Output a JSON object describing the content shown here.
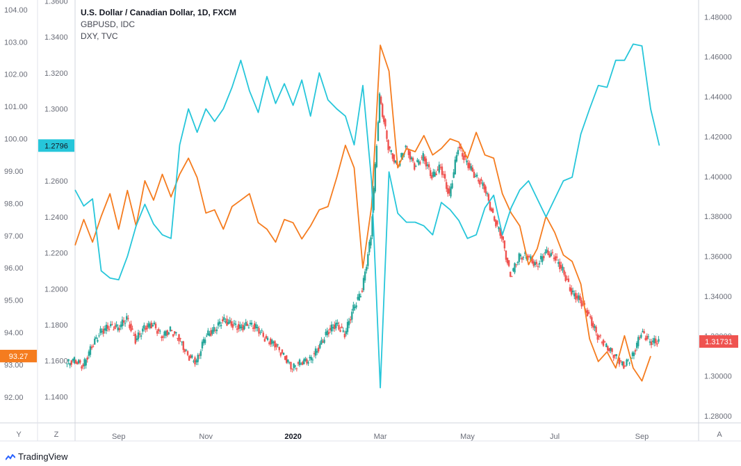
{
  "chart_data": {
    "type": "line",
    "title": "U.S. Dollar / Canadian Dollar, 1D, FXCM",
    "legend": [
      "U.S. Dollar / Canadian Dollar, 1D, FXCM",
      "GBPUSD, IDC",
      "DXY, TVC"
    ],
    "x_labels": [
      "Sep",
      "Nov",
      "2020",
      "Mar",
      "May",
      "Jul",
      "Sep"
    ],
    "x_label_positions": [
      0,
      2,
      4,
      6,
      8,
      10,
      12
    ],
    "x_range": [
      -1.0,
      13.3
    ],
    "dxy_axis": {
      "ticks": [
        "104.00",
        "103.00",
        "102.00",
        "101.00",
        "100.00",
        "99.00",
        "98.00",
        "97.00",
        "96.00",
        "95.00",
        "94.00",
        "93.00",
        "92.00"
      ],
      "range": [
        91.2,
        104.3
      ],
      "badge": "93.27",
      "badge_value": 93.27,
      "badge_color": "#f57c1f"
    },
    "gbpusd_axis": {
      "ticks": [
        "1.3600",
        "1.3400",
        "1.3200",
        "1.3000",
        "1.2800",
        "1.2600",
        "1.2400",
        "1.2200",
        "1.2000",
        "1.1800",
        "1.1600",
        "1.1400"
      ],
      "range": [
        1.1255,
        1.3605
      ],
      "badge": "1.2796",
      "badge_value": 1.2796,
      "badge_color": "#26c6da"
    },
    "usdcad_axis": {
      "ticks": [
        "1.48000",
        "1.46000",
        "1.44000",
        "1.42000",
        "1.40000",
        "1.38000",
        "1.36000",
        "1.34000",
        "1.32000",
        "1.30000",
        "1.28000"
      ],
      "range": [
        1.2765,
        1.4885
      ],
      "badge": "1.31731",
      "badge_value": 1.31731,
      "badge_color": "#ef5350"
    },
    "series": [
      {
        "name": "DXY, TVC",
        "axis": "dxy",
        "color": "#f57c1f",
        "x": [
          -1.0,
          -0.8,
          -0.6,
          -0.4,
          -0.2,
          0.0,
          0.2,
          0.4,
          0.6,
          0.8,
          1.0,
          1.2,
          1.4,
          1.6,
          1.8,
          2.0,
          2.2,
          2.4,
          2.6,
          2.8,
          3.0,
          3.2,
          3.4,
          3.6,
          3.8,
          4.0,
          4.2,
          4.4,
          4.6,
          4.8,
          5.0,
          5.2,
          5.4,
          5.6,
          5.8,
          6.0,
          6.2,
          6.4,
          6.6,
          6.8,
          7.0,
          7.2,
          7.4,
          7.6,
          7.8,
          8.0,
          8.2,
          8.4,
          8.6,
          8.8,
          9.0,
          9.2,
          9.4,
          9.6,
          9.8,
          10.0,
          10.2,
          10.4,
          10.6,
          10.8,
          11.0,
          11.2,
          11.4,
          11.6,
          11.8,
          12.0,
          12.2
        ],
        "values": [
          96.7,
          97.5,
          96.8,
          97.6,
          98.3,
          97.2,
          98.4,
          97.3,
          98.7,
          98.1,
          98.9,
          98.2,
          98.9,
          99.4,
          98.8,
          97.7,
          97.8,
          97.2,
          97.9,
          98.1,
          98.3,
          97.4,
          97.2,
          96.8,
          97.5,
          97.4,
          96.9,
          97.3,
          97.8,
          97.9,
          98.8,
          99.8,
          99.1,
          96.0,
          97.9,
          102.9,
          102.1,
          99.1,
          99.7,
          99.6,
          100.1,
          99.5,
          99.7,
          100.0,
          99.9,
          99.4,
          100.2,
          99.5,
          99.4,
          98.3,
          97.7,
          97.3,
          96.1,
          96.6,
          97.6,
          97.1,
          96.4,
          96.2,
          95.5,
          93.8,
          93.1,
          93.4,
          92.9,
          93.9,
          92.9,
          92.5,
          93.27
        ]
      },
      {
        "name": "GBPUSD, IDC",
        "axis": "gbpusd",
        "color": "#26c6da",
        "x": [
          -1.0,
          -0.8,
          -0.6,
          -0.4,
          -0.2,
          0.0,
          0.2,
          0.4,
          0.6,
          0.8,
          1.0,
          1.2,
          1.4,
          1.6,
          1.8,
          2.0,
          2.2,
          2.4,
          2.6,
          2.8,
          3.0,
          3.2,
          3.4,
          3.6,
          3.8,
          4.0,
          4.2,
          4.4,
          4.6,
          4.8,
          5.0,
          5.2,
          5.4,
          5.6,
          5.8,
          6.0,
          6.2,
          6.4,
          6.6,
          6.8,
          7.0,
          7.2,
          7.4,
          7.6,
          7.8,
          8.0,
          8.2,
          8.4,
          8.6,
          8.8,
          9.0,
          9.2,
          9.4,
          9.6,
          9.8,
          10.0,
          10.2,
          10.4,
          10.6,
          10.8,
          11.0,
          11.2,
          11.4,
          11.6,
          11.8,
          12.0,
          12.2,
          12.4
        ],
        "values": [
          1.255,
          1.246,
          1.25,
          1.21,
          1.206,
          1.205,
          1.218,
          1.235,
          1.247,
          1.236,
          1.23,
          1.228,
          1.28,
          1.3,
          1.287,
          1.3,
          1.293,
          1.3,
          1.312,
          1.327,
          1.31,
          1.298,
          1.318,
          1.303,
          1.314,
          1.302,
          1.316,
          1.296,
          1.32,
          1.305,
          1.3,
          1.296,
          1.28,
          1.313,
          1.26,
          1.145,
          1.265,
          1.242,
          1.237,
          1.237,
          1.235,
          1.23,
          1.248,
          1.244,
          1.238,
          1.228,
          1.23,
          1.245,
          1.252,
          1.23,
          1.245,
          1.255,
          1.26,
          1.25,
          1.24,
          1.25,
          1.26,
          1.262,
          1.286,
          1.3,
          1.313,
          1.312,
          1.327,
          1.327,
          1.336,
          1.335,
          1.3,
          1.2796
        ]
      }
    ],
    "candles": {
      "name": "U.S. Dollar / Canadian Dollar, 1D, FXCM",
      "axis": "usdcad",
      "up_color": "#26a69a",
      "down_color": "#ef5350",
      "x": [
        -1.0,
        -0.8,
        -0.6,
        -0.4,
        -0.2,
        0.0,
        0.2,
        0.4,
        0.6,
        0.8,
        1.0,
        1.2,
        1.4,
        1.6,
        1.8,
        2.0,
        2.2,
        2.4,
        2.6,
        2.8,
        3.0,
        3.2,
        3.4,
        3.6,
        3.8,
        4.0,
        4.2,
        4.4,
        4.6,
        4.8,
        5.0,
        5.2,
        5.4,
        5.6,
        5.8,
        6.0,
        6.2,
        6.4,
        6.6,
        6.8,
        7.0,
        7.2,
        7.4,
        7.6,
        7.8,
        8.0,
        8.2,
        8.4,
        8.6,
        8.8,
        9.0,
        9.2,
        9.4,
        9.6,
        9.8,
        10.0,
        10.2,
        10.4,
        10.6,
        10.8,
        11.0,
        11.2,
        11.4,
        11.6,
        11.8,
        12.0,
        12.2,
        12.4
      ],
      "close": [
        1.308,
        1.305,
        1.315,
        1.322,
        1.325,
        1.324,
        1.329,
        1.318,
        1.324,
        1.326,
        1.32,
        1.323,
        1.319,
        1.31,
        1.307,
        1.32,
        1.323,
        1.328,
        1.326,
        1.324,
        1.326,
        1.324,
        1.318,
        1.316,
        1.31,
        1.304,
        1.307,
        1.308,
        1.314,
        1.322,
        1.326,
        1.321,
        1.334,
        1.343,
        1.37,
        1.44,
        1.415,
        1.405,
        1.415,
        1.405,
        1.41,
        1.4,
        1.405,
        1.39,
        1.415,
        1.407,
        1.4,
        1.395,
        1.38,
        1.37,
        1.35,
        1.36,
        1.36,
        1.355,
        1.362,
        1.36,
        1.353,
        1.342,
        1.338,
        1.33,
        1.32,
        1.315,
        1.31,
        1.305,
        1.31,
        1.322,
        1.3173,
        1.3173
      ]
    },
    "badges": [
      "1.2796",
      "93.27",
      "1.31731"
    ],
    "corners": {
      "left": "Y",
      "mid": "Z",
      "right": "A"
    },
    "brand": "TradingView"
  }
}
